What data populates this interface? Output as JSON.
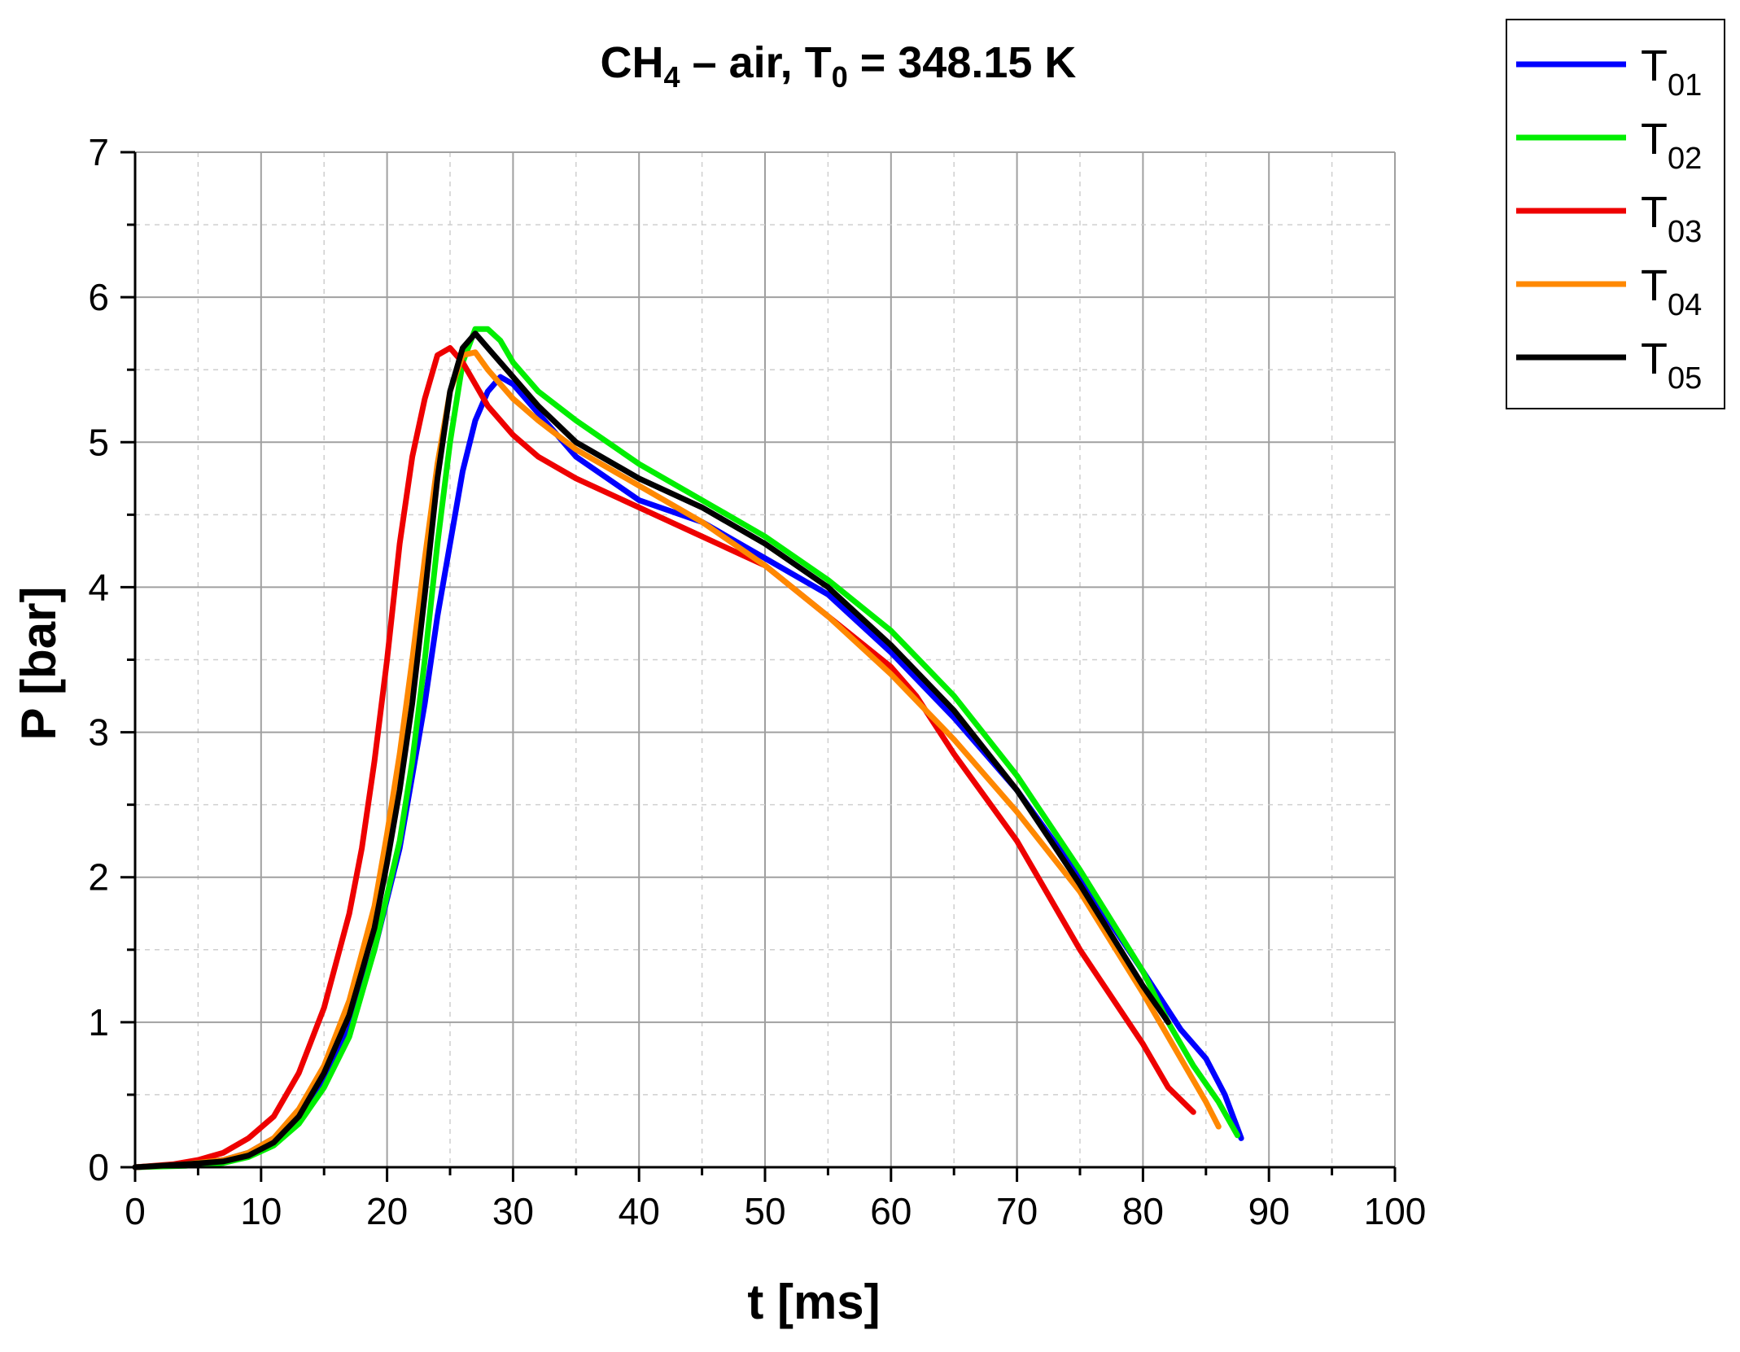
{
  "chart_data": {
    "type": "line",
    "title": {
      "prefix": "CH",
      "prefix_sub": "4",
      "middle": " – air, T",
      "middle_sub": "0",
      "suffix": " = 348.15 K"
    },
    "xlabel": "t [ms]",
    "ylabel": "P [bar]",
    "xlim": [
      0,
      100
    ],
    "ylim": [
      0,
      7
    ],
    "xticks": [
      "0",
      "10",
      "20",
      "30",
      "40",
      "50",
      "60",
      "70",
      "80",
      "90",
      "100"
    ],
    "yticks": [
      "0",
      "1",
      "2",
      "3",
      "4",
      "5",
      "6",
      "7"
    ],
    "grid": true,
    "legend_position": "outside-top-right",
    "series": [
      {
        "name": "T01",
        "label_main": "T",
        "label_sub": "01",
        "color": "#0000ff",
        "x": [
          0,
          4,
          7,
          9,
          11,
          13,
          15,
          17,
          19,
          21,
          22,
          23,
          24,
          25,
          26,
          27,
          28,
          29,
          30,
          32,
          35,
          40,
          45,
          50,
          55,
          60,
          65,
          70,
          75,
          80,
          83,
          85,
          86.5,
          87.8
        ],
        "y": [
          0,
          0.02,
          0.05,
          0.1,
          0.2,
          0.35,
          0.6,
          0.95,
          1.5,
          2.2,
          2.7,
          3.2,
          3.8,
          4.3,
          4.8,
          5.15,
          5.35,
          5.45,
          5.4,
          5.2,
          4.9,
          4.6,
          4.45,
          4.2,
          3.95,
          3.55,
          3.1,
          2.6,
          2.0,
          1.35,
          0.95,
          0.75,
          0.5,
          0.2
        ]
      },
      {
        "name": "T02",
        "label_main": "T",
        "label_sub": "02",
        "color": "#00ee00",
        "x": [
          0,
          4,
          7,
          9,
          11,
          13,
          15,
          17,
          19,
          21,
          22,
          23,
          24,
          25,
          26,
          27,
          28,
          29,
          30,
          32,
          35,
          40,
          45,
          50,
          55,
          60,
          65,
          70,
          75,
          80,
          82,
          84,
          86,
          87.5
        ],
        "y": [
          0,
          0.01,
          0.03,
          0.07,
          0.15,
          0.3,
          0.55,
          0.9,
          1.5,
          2.25,
          2.8,
          3.5,
          4.3,
          5.0,
          5.55,
          5.78,
          5.78,
          5.7,
          5.55,
          5.35,
          5.15,
          4.85,
          4.6,
          4.35,
          4.05,
          3.7,
          3.25,
          2.7,
          2.05,
          1.35,
          1.0,
          0.7,
          0.45,
          0.22
        ]
      },
      {
        "name": "T03",
        "label_main": "T",
        "label_sub": "03",
        "color": "#ee0000",
        "x": [
          0,
          3,
          5,
          7,
          9,
          11,
          13,
          15,
          17,
          18,
          19,
          20,
          21,
          22,
          23,
          24,
          25,
          26,
          27,
          28,
          30,
          32,
          35,
          40,
          45,
          50,
          55,
          60,
          62,
          65,
          70,
          75,
          80,
          82,
          84
        ],
        "y": [
          0,
          0.02,
          0.05,
          0.1,
          0.2,
          0.35,
          0.65,
          1.1,
          1.75,
          2.2,
          2.8,
          3.5,
          4.3,
          4.9,
          5.3,
          5.6,
          5.65,
          5.55,
          5.4,
          5.25,
          5.05,
          4.9,
          4.75,
          4.55,
          4.35,
          4.15,
          3.8,
          3.45,
          3.25,
          2.85,
          2.25,
          1.5,
          0.85,
          0.55,
          0.38
        ]
      },
      {
        "name": "T04",
        "label_main": "T",
        "label_sub": "04",
        "color": "#ff8800",
        "x": [
          0,
          4,
          7,
          9,
          11,
          13,
          15,
          17,
          19,
          20,
          21,
          22,
          23,
          24,
          25,
          26,
          27,
          28,
          30,
          32,
          35,
          40,
          45,
          50,
          55,
          60,
          65,
          70,
          75,
          80,
          83,
          85,
          86
        ],
        "y": [
          0,
          0.02,
          0.05,
          0.1,
          0.2,
          0.4,
          0.7,
          1.15,
          1.8,
          2.3,
          2.85,
          3.5,
          4.2,
          4.85,
          5.35,
          5.6,
          5.62,
          5.5,
          5.3,
          5.15,
          4.95,
          4.7,
          4.45,
          4.15,
          3.8,
          3.4,
          2.95,
          2.45,
          1.9,
          1.2,
          0.75,
          0.45,
          0.28
        ]
      },
      {
        "name": "T05",
        "label_main": "T",
        "label_sub": "05",
        "color": "#000000",
        "x": [
          0,
          4,
          7,
          9,
          11,
          13,
          15,
          17,
          19,
          20,
          21,
          22,
          23,
          24,
          25,
          26,
          27,
          28,
          29,
          30,
          32,
          35,
          40,
          45,
          50,
          55,
          60,
          65,
          70,
          75,
          80,
          82
        ],
        "y": [
          0,
          0.02,
          0.04,
          0.08,
          0.17,
          0.35,
          0.65,
          1.05,
          1.65,
          2.1,
          2.6,
          3.2,
          3.95,
          4.75,
          5.35,
          5.65,
          5.75,
          5.65,
          5.55,
          5.45,
          5.25,
          5.0,
          4.75,
          4.55,
          4.3,
          4.0,
          3.6,
          3.15,
          2.6,
          1.95,
          1.25,
          1.0
        ]
      }
    ]
  }
}
